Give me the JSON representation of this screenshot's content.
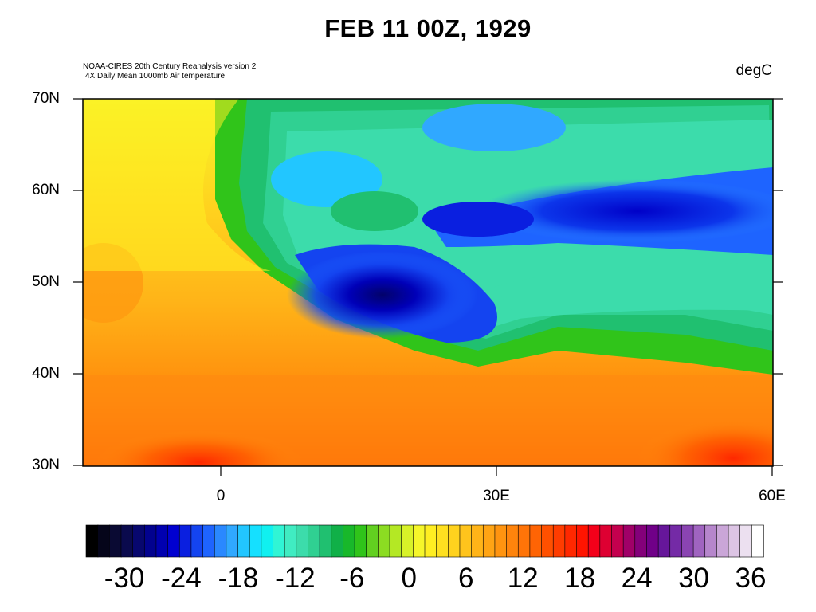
{
  "title": "FEB 11 00Z, 1929",
  "source_line1": "NOAA-CIRES 20th Century Reanalysis version 2",
  "source_line2": "4X Daily Mean 1000mb Air temperature",
  "units": "degC",
  "map": {
    "region": "Europe / North Africa / Western Asia",
    "lon_range": [
      -15,
      60
    ],
    "lat_range": [
      30,
      70
    ],
    "lat_ticks": [
      "70N",
      "60N",
      "50N",
      "40N",
      "30N"
    ],
    "lon_ticks": [
      "0",
      "30E",
      "60E"
    ],
    "features": [
      {
        "name": "cold core",
        "approx_lat": 49,
        "approx_lon": 18,
        "approx_value_degC": -30
      },
      {
        "name": "cold band",
        "approx_lat": 56,
        "approx_lon": 50,
        "approx_value_degC": -24
      },
      {
        "name": "warm Sahara",
        "approx_lat": 31,
        "approx_lon": 5,
        "approx_value_degC": 18
      },
      {
        "name": "warm Arabia",
        "approx_lat": 31,
        "approx_lon": 57,
        "approx_value_degC": 18
      }
    ]
  },
  "colorbar": {
    "labels": [
      "-30",
      "-24",
      "-18",
      "-12",
      "-6",
      "0",
      "6",
      "12",
      "18",
      "24",
      "30",
      "36"
    ],
    "min": -33,
    "max": 39,
    "colors": [
      "#000000",
      "#05051a",
      "#0a0a33",
      "#0a0a4d",
      "#07076e",
      "#02028f",
      "#0000b0",
      "#0000d0",
      "#0a1fe0",
      "#1444f0",
      "#1e64ff",
      "#2a88ff",
      "#30a8ff",
      "#22c6ff",
      "#15e0ff",
      "#10f0f0",
      "#30f5d5",
      "#40ecc2",
      "#3cdcab",
      "#30d092",
      "#20c070",
      "#10b048",
      "#18b82a",
      "#30c41a",
      "#62d020",
      "#8cdc22",
      "#b4e824",
      "#d8f228",
      "#f6f62a",
      "#ffee22",
      "#ffe020",
      "#ffd21e",
      "#ffc41c",
      "#ffb418",
      "#ffa414",
      "#ff9410",
      "#ff840c",
      "#ff7408",
      "#ff6404",
      "#ff5000",
      "#ff3c00",
      "#ff2800",
      "#ff1400",
      "#f4001a",
      "#de0032",
      "#c4004e",
      "#a00068",
      "#84007a",
      "#700088",
      "#66169a",
      "#742aa6",
      "#8a44b2",
      "#a064c0",
      "#b686cc",
      "#caa6d8",
      "#dcc4e4",
      "#ece0f0",
      "#ffffff"
    ]
  }
}
